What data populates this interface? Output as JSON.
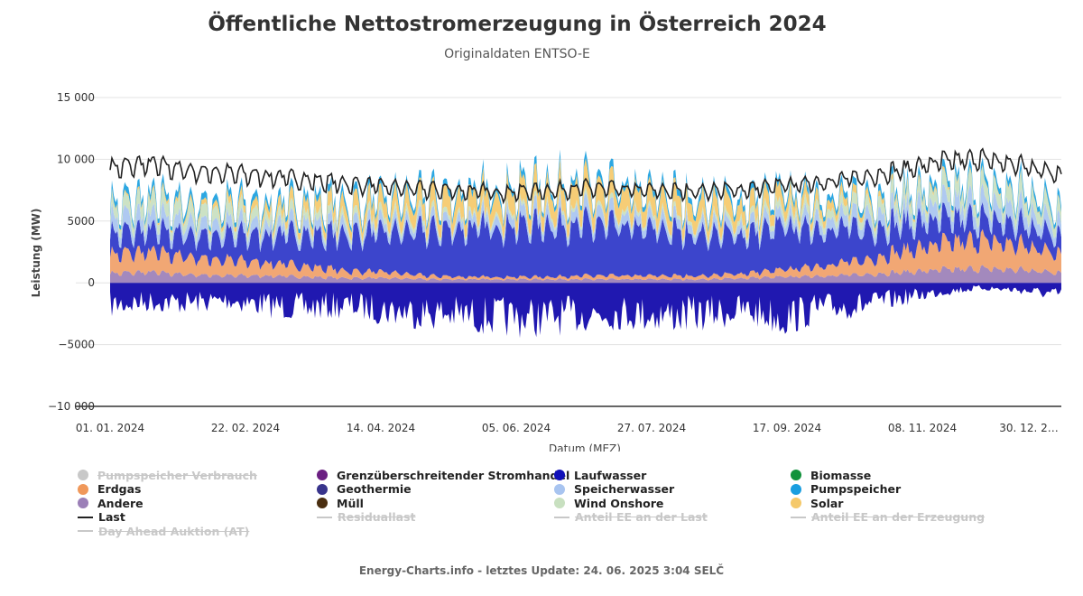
{
  "chart_data": {
    "type": "area",
    "title": "Öffentliche Nettostromerzeugung in Österreich 2024",
    "subtitle": "Originaldaten ENTSO-E",
    "xlabel": "Datum (MEZ)",
    "ylabel": "Leistung (MW)",
    "ylim": [
      -10000,
      15000
    ],
    "yticks": [
      15000,
      10000,
      5000,
      0,
      -5000,
      -10000
    ],
    "ytick_labels": [
      "15 000",
      "10 000",
      "5000",
      "0",
      "−5000",
      "−10 000"
    ],
    "xticks": [
      "01. 01. 2024",
      "22. 02. 2024",
      "14. 04. 2024",
      "05. 06. 2024",
      "27. 07. 2024",
      "17. 09. 2024",
      "08. 11. 2024",
      "30. 12. 2…"
    ],
    "grid": true,
    "legend_placement": "bottom",
    "x": [
      "2024-01-01",
      "2024-01-15",
      "2024-02-01",
      "2024-02-15",
      "2024-03-01",
      "2024-03-15",
      "2024-04-01",
      "2024-04-15",
      "2024-05-01",
      "2024-05-15",
      "2024-06-01",
      "2024-06-15",
      "2024-07-01",
      "2024-07-15",
      "2024-08-01",
      "2024-08-15",
      "2024-09-01",
      "2024-09-15",
      "2024-10-01",
      "2024-10-15",
      "2024-11-01",
      "2024-11-15",
      "2024-12-01",
      "2024-12-15",
      "2024-12-31"
    ],
    "series": [
      {
        "name": "Andere",
        "color": "#9b7fb7",
        "values": [
          800,
          900,
          700,
          600,
          600,
          500,
          400,
          400,
          300,
          300,
          300,
          300,
          300,
          300,
          300,
          300,
          400,
          500,
          600,
          700,
          900,
          1100,
          1200,
          1100,
          900
        ]
      },
      {
        "name": "Erdgas",
        "color": "#f0a068",
        "values": [
          1600,
          1700,
          1500,
          1300,
          1100,
          900,
          600,
          500,
          300,
          200,
          200,
          200,
          300,
          300,
          300,
          300,
          400,
          600,
          900,
          1200,
          1800,
          2200,
          2400,
          2100,
          1700
        ]
      },
      {
        "name": "Laufwasser",
        "color": "#2b35c8",
        "values": [
          1700,
          1800,
          1900,
          2100,
          2400,
          2700,
          3100,
          3400,
          3800,
          4100,
          4300,
          4400,
          4300,
          4100,
          3800,
          3500,
          3300,
          3600,
          3100,
          2700,
          2300,
          2000,
          1800,
          1700,
          1600
        ]
      },
      {
        "name": "Speicherwasser",
        "color": "#a8c4f0",
        "values": [
          1200,
          1100,
          1000,
          900,
          800,
          800,
          700,
          700,
          600,
          700,
          800,
          900,
          900,
          800,
          800,
          700,
          700,
          800,
          900,
          1000,
          1100,
          1200,
          1300,
          1200,
          1100
        ]
      },
      {
        "name": "Wind Onshore",
        "color": "#c8e0c0",
        "values": [
          800,
          1100,
          1000,
          900,
          700,
          600,
          500,
          500,
          400,
          300,
          300,
          300,
          300,
          300,
          300,
          300,
          400,
          600,
          700,
          800,
          900,
          1000,
          1100,
          1200,
          1000
        ]
      },
      {
        "name": "Solar",
        "color": "#f5c96a",
        "values": [
          100,
          200,
          300,
          500,
          700,
          900,
          1100,
          1300,
          1500,
          1600,
          1700,
          1800,
          1800,
          1700,
          1600,
          1500,
          1300,
          1100,
          800,
          500,
          300,
          200,
          100,
          100,
          100
        ]
      },
      {
        "name": "Pumpspeicher",
        "color": "#1aa0e0",
        "values": [
          500,
          500,
          500,
          500,
          500,
          500,
          500,
          500,
          500,
          500,
          500,
          500,
          500,
          500,
          500,
          500,
          500,
          500,
          500,
          500,
          500,
          500,
          500,
          500,
          500
        ]
      },
      {
        "name": "Grenzüberschreitender Stromhandel",
        "color": "#2018b0",
        "values": [
          -1800,
          -1500,
          -1600,
          -1400,
          -1800,
          -2000,
          -1800,
          -2200,
          -2400,
          -2600,
          -2800,
          -2800,
          -2500,
          -2400,
          -2600,
          -2500,
          -2200,
          -2800,
          -2000,
          -1800,
          -1200,
          -700,
          -400,
          -600,
          -1000
        ]
      },
      {
        "name": "Last",
        "color": "#222222",
        "values": [
          8600,
          8900,
          8400,
          8200,
          8000,
          7700,
          7400,
          7200,
          7000,
          6900,
          6800,
          6900,
          7100,
          7000,
          6900,
          6900,
          7000,
          7300,
          7600,
          7900,
          8500,
          9100,
          9300,
          8800,
          8200
        ]
      }
    ]
  },
  "legend": [
    {
      "label": "Pumpspeicher Verbrauch",
      "kind": "dot",
      "color": "#c8c8c8",
      "disabled": true
    },
    {
      "label": "Grenzüberschreitender Stromhandel",
      "kind": "dot",
      "color": "#6b1f82",
      "disabled": false
    },
    {
      "label": "Laufwasser",
      "kind": "dot",
      "color": "#1010b8",
      "disabled": false
    },
    {
      "label": "Biomasse",
      "kind": "dot",
      "color": "#12923c",
      "disabled": false
    },
    {
      "label": "Erdgas",
      "kind": "dot",
      "color": "#f0985a",
      "disabled": false
    },
    {
      "label": "Geothermie",
      "kind": "dot",
      "color": "#38348c",
      "disabled": false
    },
    {
      "label": "Speicherwasser",
      "kind": "dot",
      "color": "#a8c4f0",
      "disabled": false
    },
    {
      "label": "Pumpspeicher",
      "kind": "dot",
      "color": "#1a9ee0",
      "disabled": false
    },
    {
      "label": "Andere",
      "kind": "dot",
      "color": "#9b7fb7",
      "disabled": false
    },
    {
      "label": "Müll",
      "kind": "dot",
      "color": "#4a2e10",
      "disabled": false
    },
    {
      "label": "Wind Onshore",
      "kind": "dot",
      "color": "#c8e0c0",
      "disabled": false
    },
    {
      "label": "Solar",
      "kind": "dot",
      "color": "#f5c96a",
      "disabled": false
    },
    {
      "label": "Last",
      "kind": "line",
      "color": "#222222",
      "disabled": false
    },
    {
      "label": "Residuallast",
      "kind": "line",
      "color": "#c8c8c8",
      "disabled": true
    },
    {
      "label": "Anteil EE an der Last",
      "kind": "line",
      "color": "#c8c8c8",
      "disabled": true
    },
    {
      "label": "Anteil EE an der Erzeugung",
      "kind": "line",
      "color": "#c8c8c8",
      "disabled": true
    },
    {
      "label": "Day Ahead Auktion (AT)",
      "kind": "line",
      "color": "#c8c8c8",
      "disabled": true
    }
  ],
  "footer": "Energy-Charts.info - letztes Update: 24. 06. 2025 3:04 SELČ"
}
